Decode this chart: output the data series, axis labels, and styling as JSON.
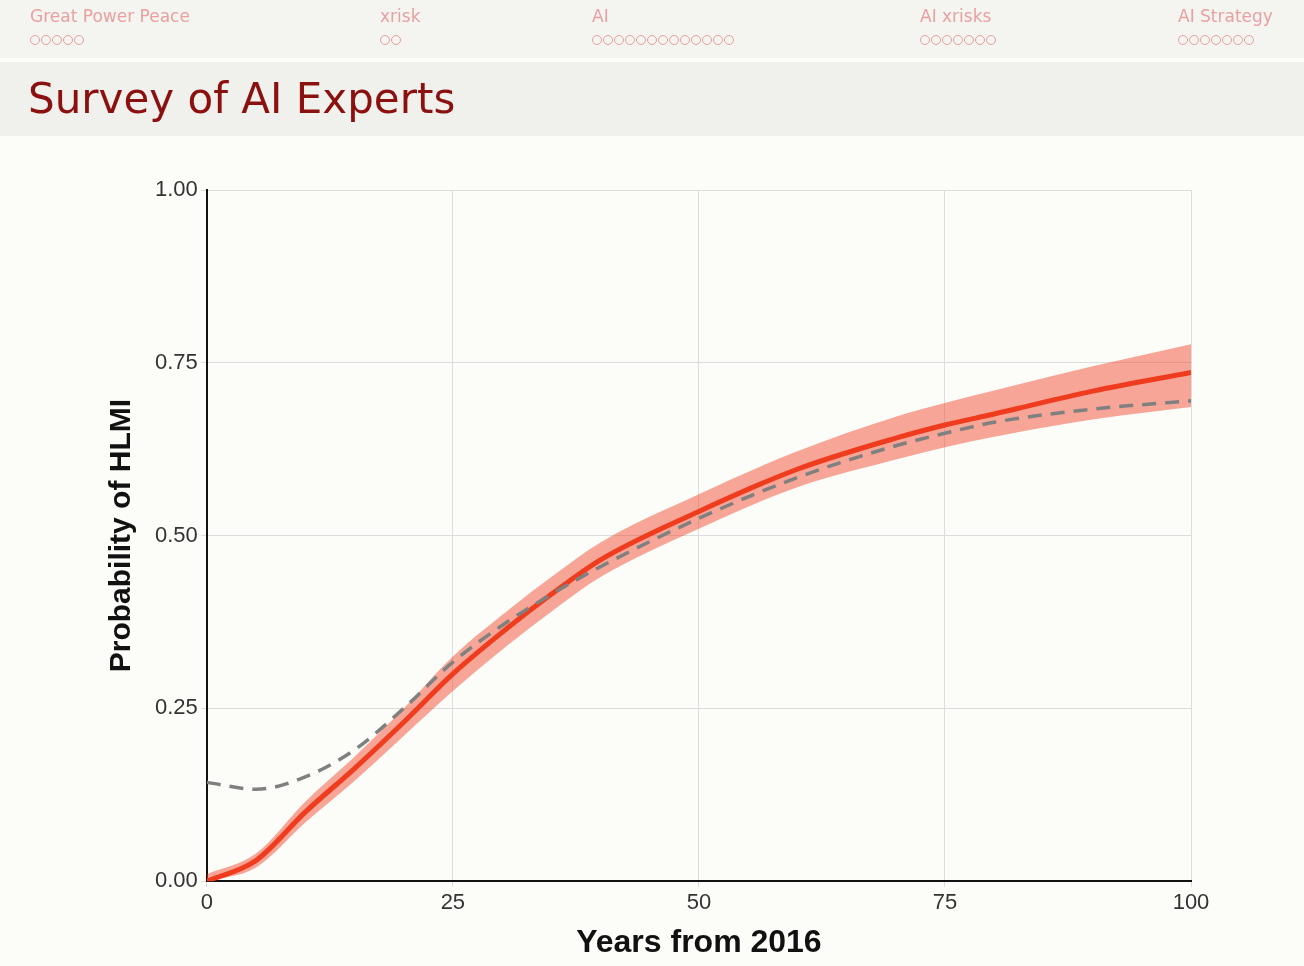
{
  "chart_data": {
    "type": "line",
    "title": "Survey of AI Experts",
    "xlabel": "Years from 2016",
    "ylabel": "Probability of HLMI",
    "x": [
      0,
      5,
      10,
      15,
      20,
      25,
      30,
      35,
      40,
      50,
      60,
      70,
      75,
      80,
      90,
      100
    ],
    "series": [
      {
        "color": "#f03c1e",
        "values": [
          0.0,
          0.03,
          0.1,
          0.163,
          0.23,
          0.3,
          0.36,
          0.415,
          0.465,
          0.535,
          0.596,
          0.641,
          0.66,
          0.676,
          0.709,
          0.736
        ],
        "lower": [
          0.0,
          0.02,
          0.085,
          0.145,
          0.21,
          0.275,
          0.335,
          0.39,
          0.44,
          0.51,
          0.57,
          0.61,
          0.628,
          0.643,
          0.668,
          0.686
        ],
        "upper": [
          0.01,
          0.04,
          0.115,
          0.18,
          0.25,
          0.325,
          0.385,
          0.44,
          0.49,
          0.56,
          0.622,
          0.672,
          0.692,
          0.71,
          0.745,
          0.777
        ]
      },
      {
        "color": "#808080",
        "line_style": "dashed",
        "values": [
          0.143,
          0.133,
          0.151,
          0.19,
          0.25,
          0.317,
          0.37,
          0.415,
          0.455,
          0.525,
          0.584,
          0.63,
          0.648,
          0.664,
          0.683,
          0.695
        ]
      }
    ],
    "xlim": [
      0,
      100
    ],
    "xticks": [
      0,
      25,
      50,
      75,
      100
    ],
    "ylim": [
      0,
      1
    ],
    "yticks": [
      {
        "value": 0,
        "label": "0.00"
      },
      {
        "value": 0.25,
        "label": "0.25"
      },
      {
        "value": 0.5,
        "label": "0.50"
      },
      {
        "value": 0.75,
        "label": "0.75"
      },
      {
        "value": 1,
        "label": "1.00"
      }
    ],
    "grid": true,
    "legend": false,
    "marker": "none",
    "line_style": "solid",
    "annotations": [
      "Great Power Peace",
      "xrisk",
      "AI",
      "AI xrisks",
      "AI Strategy"
    ]
  }
}
